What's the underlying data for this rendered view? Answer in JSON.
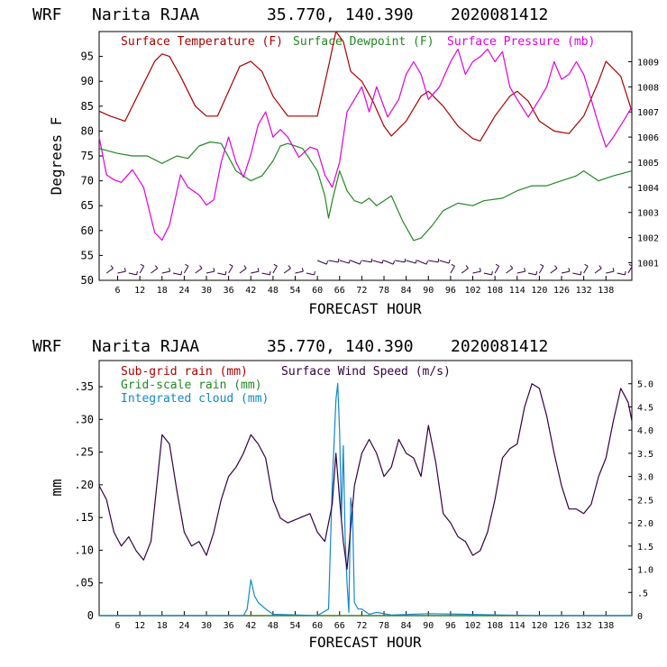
{
  "chart_data": [
    {
      "type": "line",
      "panel": "meteogram-top",
      "title": {
        "model": "WRF",
        "station": "Narita RJAA",
        "coords": "35.770, 140.390",
        "init": "2020081412"
      },
      "xlabel": "FORECAST HOUR",
      "ylabel": "Degrees F",
      "xlim": [
        1,
        145
      ],
      "ylim": [
        50,
        100
      ],
      "y2lim": [
        1000.3,
        1010.2
      ],
      "xticks": [
        "6",
        "12",
        "18",
        "24",
        "30",
        "36",
        "42",
        "48",
        "54",
        "60",
        "66",
        "72",
        "78",
        "84",
        "90",
        "96",
        "102",
        "108",
        "114",
        "120",
        "126",
        "132",
        "138"
      ],
      "yticks": [
        "95",
        "90",
        "85",
        "80",
        "75",
        "70",
        "65",
        "60",
        "55",
        "50"
      ],
      "y2ticks": [
        "1009",
        "1008",
        "1007",
        "1006",
        "1005",
        "1004",
        "1003",
        "1002",
        "1001"
      ],
      "legend": [
        "Surface Temperature (F)",
        "Surface Dewpoint (F)",
        "Surface Pressure (mb)"
      ],
      "series": [
        {
          "name": "Surface Temperature (F)",
          "axis": "left",
          "color": "#aa0000",
          "x": [
            1,
            4,
            8,
            12,
            16,
            18,
            20,
            23,
            27,
            30,
            33,
            36,
            39,
            42,
            45,
            48,
            52,
            56,
            60,
            63,
            65,
            67,
            69,
            72,
            75,
            78,
            80,
            84,
            88,
            90,
            94,
            98,
            102,
            104,
            108,
            112,
            114,
            117,
            120,
            124,
            128,
            132,
            136,
            138,
            142,
            145
          ],
          "values": [
            84,
            83,
            82,
            88,
            94,
            95.5,
            95,
            91,
            85,
            83,
            83,
            88,
            93,
            94,
            92,
            87,
            83,
            83,
            83,
            93,
            100,
            98,
            92,
            90,
            86,
            81,
            79,
            82,
            87,
            88,
            85,
            81,
            78.5,
            78,
            83,
            87,
            88,
            86,
            82,
            80,
            79.5,
            83,
            90,
            94,
            91,
            84
          ]
        },
        {
          "name": "Surface Dewpoint (F)",
          "axis": "left",
          "color": "#228822",
          "x": [
            1,
            6,
            10,
            14,
            18,
            22,
            25,
            28,
            31,
            34,
            38,
            42,
            45,
            48,
            50,
            52,
            56,
            60,
            62,
            63,
            64,
            66,
            68,
            70,
            72,
            74,
            76,
            80,
            83,
            86,
            88,
            91,
            94,
            98,
            102,
            105,
            110,
            114,
            118,
            122,
            126,
            130,
            132,
            136,
            140,
            145
          ],
          "values": [
            76.5,
            75.5,
            75,
            75,
            73.5,
            75,
            74.5,
            77,
            77.8,
            77.5,
            72,
            70,
            71,
            74,
            77,
            77.5,
            76.5,
            72,
            67,
            62.5,
            66,
            72,
            68,
            66,
            65.5,
            66.5,
            65,
            67,
            62,
            58,
            58.5,
            61,
            64,
            65.5,
            65,
            66,
            66.5,
            68,
            69,
            69,
            70,
            71,
            72,
            70,
            71,
            72
          ]
        },
        {
          "name": "Surface Pressure (mb)",
          "axis": "right",
          "color": "#dd00dd",
          "x": [
            1,
            3,
            5,
            7,
            10,
            13,
            16,
            18,
            20,
            23,
            25,
            28,
            30,
            32,
            34,
            36,
            38,
            40,
            42,
            44,
            46,
            48,
            50,
            52,
            55,
            58,
            60,
            62,
            64,
            66,
            68,
            70,
            72,
            74,
            76,
            79,
            82,
            84,
            86,
            88,
            90,
            93,
            96,
            98,
            100,
            102,
            104,
            106,
            108,
            110,
            112,
            114,
            117,
            120,
            122,
            124,
            126,
            128,
            130,
            132,
            134,
            136,
            138,
            140,
            143,
            145
          ],
          "values": [
            1006,
            1004.5,
            1004.3,
            1004.2,
            1004.7,
            1004,
            1002.2,
            1001.9,
            1002.5,
            1004.5,
            1004,
            1003.7,
            1003.3,
            1003.5,
            1005,
            1006,
            1005,
            1004.4,
            1005.3,
            1006.5,
            1007,
            1006,
            1006.3,
            1006,
            1005.2,
            1005.6,
            1005.5,
            1004.5,
            1004,
            1005,
            1007,
            1007.5,
            1008,
            1007,
            1008,
            1006.8,
            1007.5,
            1008.5,
            1009,
            1008.5,
            1007.5,
            1008,
            1009,
            1009.5,
            1008.5,
            1009,
            1009.2,
            1009.5,
            1009,
            1009.4,
            1008,
            1007.5,
            1006.8,
            1007.5,
            1008,
            1009,
            1008.3,
            1008.5,
            1009,
            1008.5,
            1007.5,
            1006.5,
            1005.6,
            1006,
            1006.7,
            1007.2
          ]
        }
      ]
    },
    {
      "type": "line",
      "panel": "meteogram-bottom",
      "title": {
        "model": "WRF",
        "station": "Narita RJAA",
        "coords": "35.770, 140.390",
        "init": "2020081412"
      },
      "xlabel": "FORECAST HOUR",
      "ylabel": "mm",
      "xlim": [
        1,
        145
      ],
      "ylim": [
        0,
        0.39
      ],
      "y2lim": [
        0,
        5.5
      ],
      "xticks": [
        "6",
        "12",
        "18",
        "24",
        "30",
        "36",
        "42",
        "48",
        "54",
        "60",
        "66",
        "72",
        "78",
        "84",
        "90",
        "96",
        "102",
        "108",
        "114",
        "120",
        "126",
        "132",
        "138"
      ],
      "yticks": [
        ".35",
        ".30",
        ".25",
        ".20",
        ".15",
        ".10",
        ".05",
        "0"
      ],
      "y2ticks": [
        "5.0",
        "4.5",
        "4.0",
        "3.5",
        "3.0",
        "2.5",
        "2.0",
        "1.5",
        "1.0",
        ".5",
        "0"
      ],
      "legend": [
        "Sub-grid rain (mm)",
        "Grid-scale rain (mm)",
        "Integrated cloud (mm)",
        "Surface Wind Speed (m/s)"
      ],
      "series": [
        {
          "name": "Sub-grid rain (mm)",
          "axis": "left",
          "color": "#aa0000",
          "x": [
            1,
            145
          ],
          "values": [
            0,
            0
          ]
        },
        {
          "name": "Grid-scale rain (mm)",
          "axis": "left",
          "color": "#228822",
          "x": [
            1,
            145
          ],
          "values": [
            0,
            0
          ]
        },
        {
          "name": "Integrated cloud (mm)",
          "axis": "left",
          "color": "#1188cc",
          "x": [
            1,
            40,
            41,
            42,
            43,
            44,
            46,
            48,
            60,
            63,
            64,
            65,
            65.5,
            66,
            66.5,
            67,
            67.5,
            68,
            68.5,
            69,
            69.5,
            70,
            71,
            72,
            74,
            76,
            80,
            90,
            100,
            110,
            120,
            145
          ],
          "values": [
            0,
            0,
            0.01,
            0.055,
            0.03,
            0.02,
            0.01,
            0.002,
            0,
            0.01,
            0.2,
            0.33,
            0.355,
            0.28,
            0.15,
            0.26,
            0.12,
            0.05,
            0.005,
            0.18,
            0.16,
            0.02,
            0.01,
            0.01,
            0.002,
            0.005,
            0.001,
            0.003,
            0.002,
            0.001,
            0,
            0
          ]
        },
        {
          "name": "Surface Wind Speed (m/s)",
          "axis": "right",
          "color": "#330044",
          "x": [
            1,
            3,
            5,
            7,
            9,
            11,
            13,
            15,
            18,
            20,
            22,
            24,
            26,
            28,
            30,
            32,
            34,
            36,
            38,
            40,
            42,
            44,
            46,
            48,
            50,
            52,
            55,
            58,
            60,
            62,
            64,
            65,
            66,
            67,
            68,
            70,
            72,
            74,
            76,
            78,
            80,
            82,
            84,
            86,
            88,
            90,
            92,
            94,
            96,
            98,
            100,
            102,
            104,
            106,
            108,
            110,
            112,
            114,
            116,
            118,
            120,
            122,
            124,
            126,
            128,
            130,
            132,
            134,
            136,
            138,
            140,
            142,
            144,
            145
          ],
          "values": [
            2.8,
            2.5,
            1.8,
            1.5,
            1.7,
            1.4,
            1.2,
            1.6,
            3.9,
            3.7,
            2.7,
            1.8,
            1.5,
            1.6,
            1.3,
            1.8,
            2.5,
            3.0,
            3.2,
            3.5,
            3.9,
            3.7,
            3.4,
            2.5,
            2.1,
            2.0,
            2.1,
            2.2,
            1.8,
            1.6,
            2.4,
            3.5,
            2.5,
            1.6,
            1.0,
            2.8,
            3.5,
            3.8,
            3.5,
            3.0,
            3.2,
            3.8,
            3.5,
            3.4,
            3.0,
            4.1,
            3.3,
            2.2,
            2.0,
            1.7,
            1.6,
            1.3,
            1.4,
            1.8,
            2.5,
            3.4,
            3.6,
            3.7,
            4.5,
            5.0,
            4.9,
            4.3,
            3.5,
            2.8,
            2.3,
            2.3,
            2.2,
            2.4,
            3.0,
            3.4,
            4.2,
            4.9,
            4.6,
            4.2
          ]
        }
      ]
    }
  ]
}
